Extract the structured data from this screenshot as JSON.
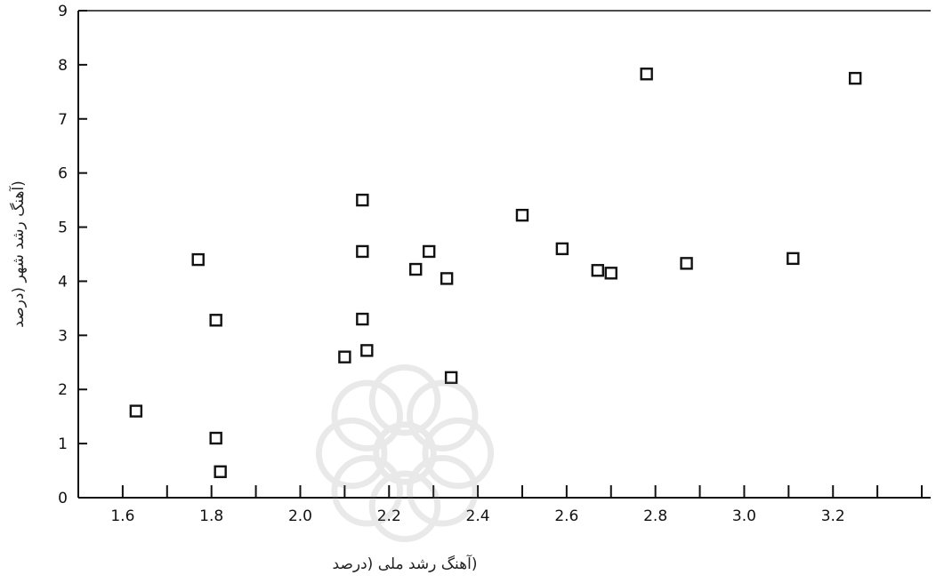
{
  "chart_data": {
    "type": "scatter",
    "title": "",
    "xlabel": "(آهنگ رشد ملی (درصد",
    "ylabel": "(آهنگ رشد شهر (درصد",
    "xlim": [
      1.5,
      3.42
    ],
    "ylim": [
      0,
      9
    ],
    "x_ticks": [
      "1.6",
      "1.8",
      "2.0",
      "2.2",
      "2.4",
      "2.6",
      "2.8",
      "3.0",
      "3.2"
    ],
    "y_ticks": [
      "0",
      "1",
      "2",
      "3",
      "4",
      "5",
      "6",
      "7",
      "8",
      "9"
    ],
    "grid": false,
    "legend": "none",
    "series": [
      {
        "marker": "hollow-square",
        "points": [
          {
            "x": 1.63,
            "y": 1.6
          },
          {
            "x": 1.77,
            "y": 4.4
          },
          {
            "x": 1.81,
            "y": 3.28
          },
          {
            "x": 1.81,
            "y": 1.1
          },
          {
            "x": 1.82,
            "y": 0.48
          },
          {
            "x": 2.1,
            "y": 2.6
          },
          {
            "x": 2.14,
            "y": 5.5
          },
          {
            "x": 2.14,
            "y": 4.55
          },
          {
            "x": 2.14,
            "y": 3.3
          },
          {
            "x": 2.15,
            "y": 2.72
          },
          {
            "x": 2.26,
            "y": 4.22
          },
          {
            "x": 2.29,
            "y": 4.55
          },
          {
            "x": 2.33,
            "y": 4.05
          },
          {
            "x": 2.34,
            "y": 2.22
          },
          {
            "x": 2.5,
            "y": 5.22
          },
          {
            "x": 2.59,
            "y": 4.6
          },
          {
            "x": 2.67,
            "y": 4.2
          },
          {
            "x": 2.7,
            "y": 4.15
          },
          {
            "x": 2.78,
            "y": 7.83
          },
          {
            "x": 2.87,
            "y": 4.33
          },
          {
            "x": 3.11,
            "y": 4.42
          },
          {
            "x": 3.25,
            "y": 7.75
          }
        ]
      }
    ]
  },
  "colors": {
    "axis": "#111111",
    "marker": "#111111",
    "background": "#ffffff",
    "watermark": "#888888"
  },
  "watermark_icon": "rosette-logo"
}
